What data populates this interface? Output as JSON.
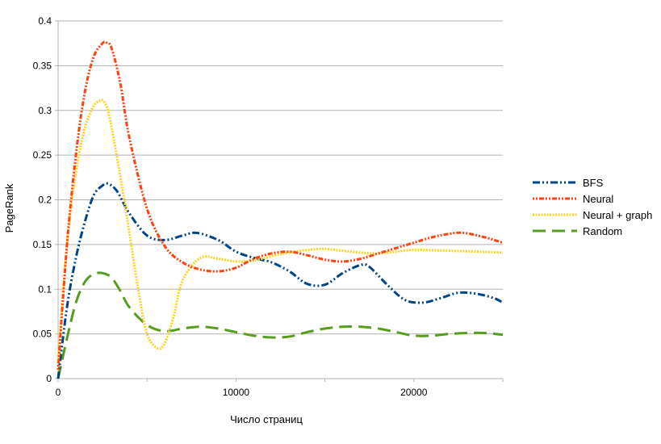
{
  "chart_data": {
    "type": "line",
    "title": "",
    "xlabel": "Число страниц",
    "ylabel": "PageRank",
    "xlim": [
      0,
      25000
    ],
    "ylim": [
      0,
      0.4
    ],
    "x_ticks": [
      0,
      10000,
      20000
    ],
    "y_ticks": [
      0,
      0.05,
      0.1,
      0.15,
      0.2,
      0.25,
      0.3,
      0.35,
      0.4
    ],
    "x_tick_labels": [
      "0",
      "10000",
      "20000"
    ],
    "y_tick_labels": [
      "0",
      "0.05",
      "0.1",
      "0.15",
      "0.2",
      "0.25",
      "0.3",
      "0.35",
      "0.4"
    ],
    "grid": "horizontal",
    "legend_position": "right",
    "series": [
      {
        "name": "BFS",
        "color": "#004586",
        "style": "dash-dot-dot",
        "x": [
          0,
          500,
          1000,
          1500,
          2000,
          2500,
          2800,
          3300,
          4000,
          5000,
          6000,
          7000,
          7800,
          9000,
          10000,
          11000,
          12000,
          13000,
          14000,
          15000,
          16000,
          17000,
          17500,
          18500,
          19500,
          20500,
          21500,
          22500,
          23500,
          24500,
          25000
        ],
        "y": [
          0,
          0.08,
          0.135,
          0.175,
          0.205,
          0.216,
          0.218,
          0.21,
          0.185,
          0.16,
          0.155,
          0.16,
          0.163,
          0.155,
          0.142,
          0.135,
          0.13,
          0.12,
          0.106,
          0.105,
          0.118,
          0.127,
          0.125,
          0.105,
          0.088,
          0.085,
          0.09,
          0.096,
          0.095,
          0.09,
          0.085
        ]
      },
      {
        "name": "Neural",
        "color": "#ff420e",
        "style": "dotted-dash",
        "x": [
          0,
          500,
          1000,
          1500,
          2000,
          2500,
          2700,
          3000,
          3500,
          4000,
          5000,
          6000,
          7000,
          8000,
          9000,
          10000,
          11000,
          12000,
          13000,
          14000,
          15000,
          16000,
          17000,
          18000,
          19000,
          20000,
          21000,
          22000,
          22800,
          24000,
          25000
        ],
        "y": [
          0.01,
          0.15,
          0.25,
          0.32,
          0.36,
          0.375,
          0.376,
          0.37,
          0.33,
          0.27,
          0.19,
          0.148,
          0.13,
          0.122,
          0.12,
          0.124,
          0.134,
          0.14,
          0.142,
          0.138,
          0.133,
          0.131,
          0.134,
          0.14,
          0.146,
          0.152,
          0.158,
          0.162,
          0.163,
          0.158,
          0.152
        ]
      },
      {
        "name": "Neural + graph",
        "color": "#ffd320",
        "style": "dotted",
        "x": [
          0,
          500,
          1000,
          1500,
          2000,
          2300,
          2500,
          2800,
          3200,
          3800,
          4500,
          5000,
          5600,
          6000,
          6500,
          7000,
          8000,
          9000,
          10000,
          11000,
          12000,
          13000,
          14000,
          15000,
          16000,
          17000,
          18000,
          19000,
          20000,
          22000,
          25000
        ],
        "y": [
          0.02,
          0.15,
          0.23,
          0.28,
          0.305,
          0.31,
          0.311,
          0.3,
          0.26,
          0.19,
          0.1,
          0.05,
          0.034,
          0.04,
          0.07,
          0.11,
          0.135,
          0.134,
          0.131,
          0.132,
          0.137,
          0.141,
          0.144,
          0.145,
          0.143,
          0.141,
          0.14,
          0.142,
          0.144,
          0.143,
          0.141
        ]
      },
      {
        "name": "Random",
        "color": "#579d1c",
        "style": "dashed",
        "x": [
          0,
          500,
          1000,
          1500,
          2000,
          2500,
          3000,
          3500,
          4000,
          5000,
          6000,
          7000,
          8000,
          9000,
          10000,
          11000,
          12000,
          13000,
          14000,
          15000,
          16000,
          17000,
          18000,
          19000,
          20000,
          21000,
          22000,
          23000,
          24000,
          25000
        ],
        "y": [
          0,
          0.045,
          0.085,
          0.108,
          0.117,
          0.118,
          0.113,
          0.098,
          0.08,
          0.06,
          0.053,
          0.056,
          0.058,
          0.056,
          0.052,
          0.048,
          0.046,
          0.047,
          0.052,
          0.056,
          0.058,
          0.058,
          0.056,
          0.052,
          0.048,
          0.048,
          0.05,
          0.051,
          0.051,
          0.049
        ]
      }
    ]
  }
}
